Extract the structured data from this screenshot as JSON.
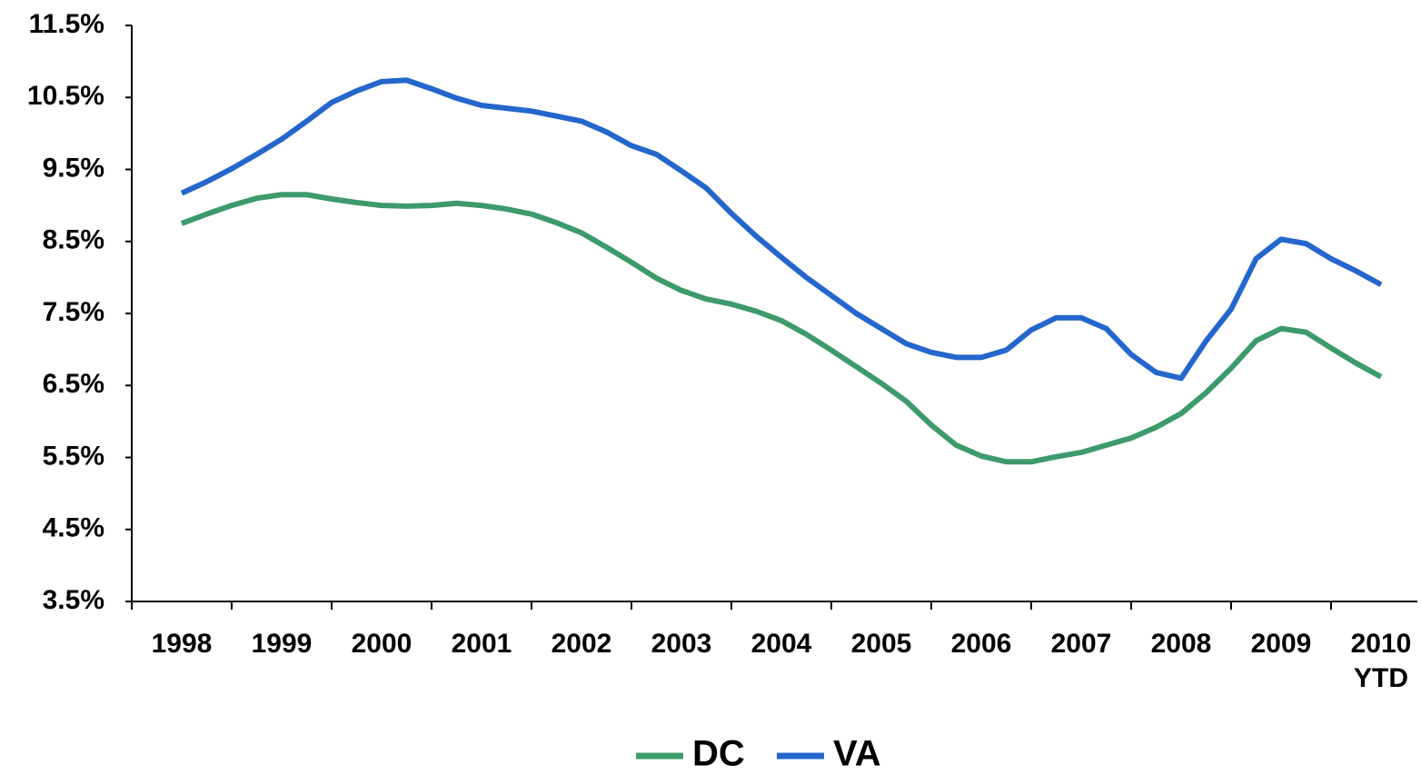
{
  "chart_data": {
    "type": "line",
    "categories": [
      "1998",
      null,
      null,
      null,
      "1999",
      null,
      null,
      null,
      "2000",
      null,
      null,
      null,
      "2001",
      null,
      null,
      null,
      "2002",
      null,
      null,
      null,
      "2003",
      null,
      null,
      null,
      "2004",
      null,
      null,
      null,
      "2005",
      null,
      null,
      null,
      "2006",
      null,
      null,
      null,
      "2007",
      null,
      null,
      null,
      "2008",
      null,
      null,
      null,
      "2009",
      null,
      null,
      null,
      "2010 YTD"
    ],
    "series": [
      {
        "name": "DC",
        "color": "#3d9a6b",
        "values": [
          8.75,
          8.88,
          9.0,
          9.1,
          9.15,
          9.15,
          9.09,
          9.04,
          9.0,
          8.99,
          9.0,
          9.03,
          9.0,
          8.95,
          8.88,
          8.76,
          8.62,
          8.42,
          8.21,
          7.99,
          7.82,
          7.7,
          7.63,
          7.53,
          7.4,
          7.21,
          6.99,
          6.76,
          6.53,
          6.28,
          5.95,
          5.67,
          5.52,
          5.44,
          5.44,
          5.51,
          5.57,
          5.67,
          5.77,
          5.92,
          6.11,
          6.4,
          6.74,
          7.12,
          7.29,
          7.24,
          7.02,
          6.81,
          6.62
        ]
      },
      {
        "name": "VA",
        "color": "#2466cc",
        "values": [
          9.17,
          9.33,
          9.51,
          9.71,
          9.92,
          10.17,
          10.43,
          10.59,
          10.72,
          10.74,
          10.62,
          10.49,
          10.39,
          10.35,
          10.31,
          10.24,
          10.17,
          10.02,
          9.83,
          9.71,
          9.48,
          9.24,
          8.89,
          8.57,
          8.28,
          8.0,
          7.75,
          7.5,
          7.29,
          7.08,
          6.96,
          6.89,
          6.89,
          6.99,
          7.27,
          7.44,
          7.44,
          7.29,
          6.93,
          6.68,
          6.6,
          7.12,
          7.56,
          8.26,
          8.53,
          8.47,
          8.26,
          8.09,
          7.9
        ]
      }
    ],
    "ylim": [
      3.5,
      11.5
    ],
    "yticks": [
      {
        "value": 3.5,
        "label": "3.5%"
      },
      {
        "value": 4.5,
        "label": "4.5%"
      },
      {
        "value": 5.5,
        "label": "5.5%"
      },
      {
        "value": 6.5,
        "label": "6.5%"
      },
      {
        "value": 7.5,
        "label": "7.5%"
      },
      {
        "value": 8.5,
        "label": "8.5%"
      },
      {
        "value": 9.5,
        "label": "9.5%"
      },
      {
        "value": 10.5,
        "label": "10.5%"
      },
      {
        "value": 11.5,
        "label": "11.5%"
      }
    ],
    "grid": false,
    "legend": "bottom"
  }
}
